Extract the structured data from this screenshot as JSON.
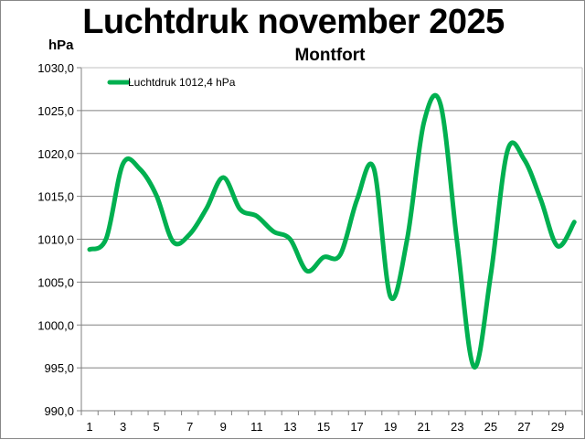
{
  "chart_data": {
    "type": "line",
    "title": "Luchtdruk november 2025",
    "subtitle": "Montfort",
    "ylabel": "hPa",
    "xlabel": "",
    "ylim": [
      990,
      1030
    ],
    "yticks": [
      "990,0",
      "995,0",
      "1000,0",
      "1005,0",
      "1010,0",
      "1015,0",
      "1020,0",
      "1025,0",
      "1030,0"
    ],
    "xticks": [
      "1",
      "3",
      "5",
      "7",
      "9",
      "11",
      "13",
      "15",
      "17",
      "19",
      "21",
      "23",
      "25",
      "27",
      "29"
    ],
    "grid": true,
    "legend_position": "top-left",
    "series": [
      {
        "name": "Luchtdruk 1012,4 hPa",
        "color": "#00b050",
        "x": [
          1,
          2,
          3,
          4,
          5,
          6,
          7,
          8,
          9,
          10,
          11,
          12,
          13,
          14,
          15,
          16,
          17,
          18,
          19,
          20,
          21,
          22,
          23,
          24,
          25,
          26,
          27,
          28,
          29,
          30
        ],
        "values": [
          1008.8,
          1010.1,
          1018.8,
          1018.2,
          1015.1,
          1009.7,
          1010.6,
          1013.6,
          1017.2,
          1013.5,
          1012.7,
          1010.9,
          1010.0,
          1006.3,
          1007.9,
          1008.2,
          1014.6,
          1018.3,
          1003.3,
          1010.0,
          1023.6,
          1025.7,
          1009.5,
          995.1,
          1005.8,
          1020.3,
          1019.3,
          1014.6,
          1009.2,
          1012.0
        ]
      }
    ]
  }
}
